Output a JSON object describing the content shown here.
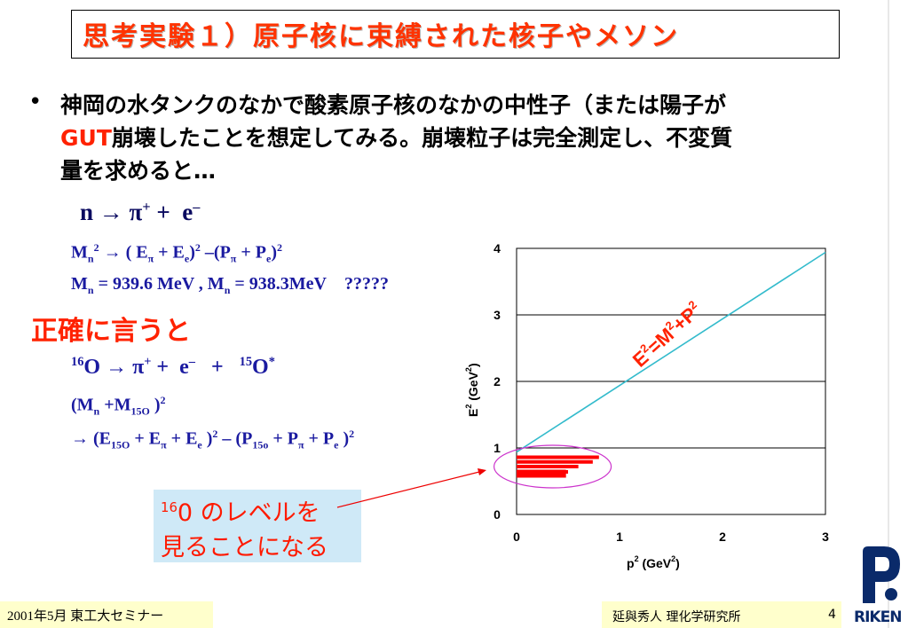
{
  "title": "思考実験１）原子核に束縛された核子やメソン",
  "bullet": {
    "marker": "•",
    "line1": "神岡の水タンクのなかで酸素原子核のなかの中性子（または陽子が",
    "line2_red": "GUT",
    "line2_rest": "崩壊したことを想定してみる。崩壊粒子は完全測定し、不変質",
    "line3": "量を求めると…"
  },
  "eq1": {
    "n": "n",
    "arrow": "→",
    "pi": "π",
    "sup_plus": "+",
    "plus": "+",
    "e": "e",
    "sup_minus": "–"
  },
  "eq2": {
    "M": "M",
    "n": "n",
    "two": "2",
    "arrow": "→",
    "lparen": "( E",
    "pi": "π",
    "plusE": " + E",
    "e": "e",
    "mid": ")",
    "minusP": " –(P",
    "plusP": " + P",
    "rp": ")"
  },
  "eq3": {
    "text1": "M",
    "n": "n",
    "text2": " = 939.6 MeV , M",
    "text3": " = 938.3MeV",
    "q": "?????"
  },
  "precisely": "正確に言うと",
  "eq4": {
    "sup16": "16",
    "O": "O",
    "arrow": "→",
    "pi": "π",
    "plus_sup": "+",
    "plus": "+",
    "e": "e",
    "minus_sup": "–",
    "sup15": "15",
    "O2": "O",
    "star": "*"
  },
  "eq5": {
    "open": "(M",
    "n": "n",
    "plusM": " +M",
    "sub15O": "15O",
    "close": " )",
    "two": "2"
  },
  "eq6": {
    "arrow": "→ (E",
    "sub15O": "15O",
    "plusE1": " + E",
    "pi": "π",
    "plusE2": " + E",
    "e": "e",
    "close": " )",
    "two": "2",
    "minusP": " – (P",
    "sub15o": "15o",
    "plusP1": " + P",
    "plusP2": " + P",
    "close2": " )"
  },
  "callout": {
    "sup": "16",
    "line1": "0  のレベルを",
    "line2": "見ることになる"
  },
  "footer": {
    "left": "2001年5月  東工大セミナー",
    "right": "延與秀人  理化学研究所",
    "page": "4",
    "logo": "RIKEN"
  },
  "chart_data": {
    "type": "line",
    "ylabel": "E",
    "ylabel_sup": "2",
    "ylabel_unit": " (GeV",
    "ylabel_unit_sup": "2",
    "ylabel_close": ")",
    "xlabel": "p",
    "xlabel_sup": "2",
    "xlabel_unit": " (GeV",
    "xlabel_unit_sup": "2",
    "xlabel_close": ")",
    "xlim": [
      0,
      3
    ],
    "ylim": [
      0,
      4
    ],
    "x_ticks": [
      "0",
      "1",
      "2",
      "3"
    ],
    "y_ticks": [
      "0",
      "1",
      "2",
      "3",
      "4"
    ],
    "grid": "horizontal",
    "series": [
      {
        "x": [
          0,
          3
        ],
        "y": [
          0.938,
          3.94
        ],
        "color": "#33bbcc"
      }
    ],
    "levels": [
      {
        "y": 0.86,
        "x_end": 0.8,
        "color": "#ff0000"
      },
      {
        "y": 0.79,
        "x_end": 0.74,
        "color": "#ff0000"
      },
      {
        "y": 0.72,
        "x_end": 0.6,
        "color": "#ff0000"
      },
      {
        "y": 0.64,
        "x_end": 0.5,
        "color": "#ff0000"
      }
    ],
    "annotation": {
      "E": "E",
      "e_sup": "2",
      "mid": "=M",
      "m_sup": "2",
      "p": "+P",
      "p_sup": "2",
      "color": "#ff2200"
    },
    "highlight_ellipse": {
      "cx": 0.35,
      "cy": 0.72,
      "color": "#cc33cc"
    },
    "arrow_color": "#ee0000"
  }
}
